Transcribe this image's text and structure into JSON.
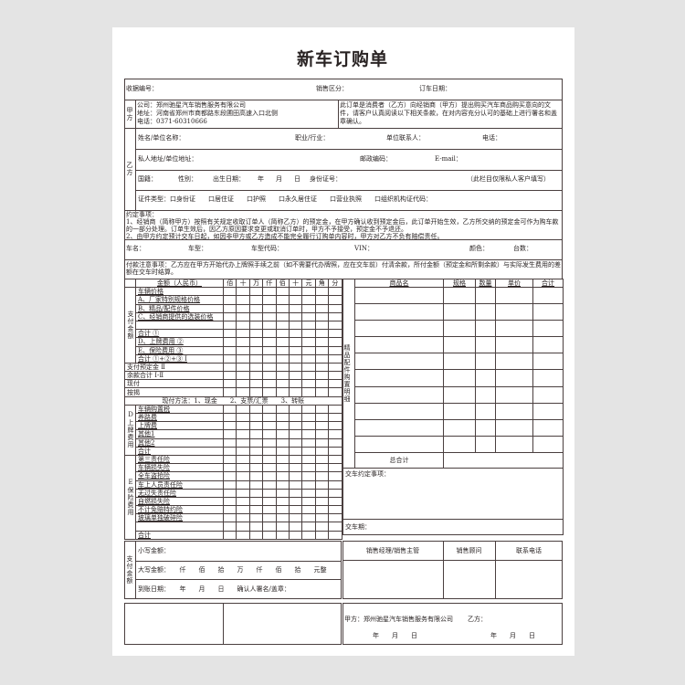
{
  "title": "新车订购单",
  "row1": {
    "receipt_no": "收据编号：",
    "sales_area": "销售区分：",
    "order_date": "订车日期："
  },
  "party_a": {
    "label": "甲方",
    "company": "公司：郑州驰星汽车销售服务有限公司",
    "address": "地址：河南省郑州市商都路东段圃田高速入口北侧",
    "phone": "电话：0371-60310666",
    "notice": "此订单是消费者（乙方）向经销商（甲方）提出购买汽车商品购买意向的文件，请客户认真阅读以下相关条款，在对内容充分认可的基础上进行署名和盖章确认。"
  },
  "party_b": {
    "label": "乙方",
    "name": "姓名/单位名称：",
    "occupation": "职业/行业：",
    "contact": "单位联系人：",
    "tel": "电话：",
    "address": "私人地址/单位地址：",
    "postcode": "邮政编码：",
    "email": "E-mail：",
    "nationality": "国籍：",
    "gender": "性别：",
    "birth": "出生日期：",
    "year": "年",
    "month": "月",
    "day": "日",
    "id_no": "身份证号：",
    "private_note": "（此栏目仅限私人客户填写）",
    "id_types": "证件类型：口身份证　　口居住证　　口护照　　口永久居住证　　口营业执照　　口组织机构证代码："
  },
  "terms": {
    "heading": "约定事项：",
    "item1": "1、经销商（简称甲方）按照有关规定收取订单人（简称乙方）的预定金，在甲方确认收到预定金后，此订单开始生效，乙方所交纳的预定金可作为购车款的一部分处理。订单生效后，因乙方原因要求变更或取消订单时，甲方不予接受，预定金不予退还。",
    "item2": "2、由甲方约定预计交车日起，如因非甲方或乙方造成不能完全履行订购单内容时，甲方对乙方不负有赔偿责任。"
  },
  "vehicle": {
    "name": "车名：",
    "model": "车型：",
    "model_code": "车型代码：",
    "vin": "VIN：",
    "color": "颜色：",
    "qty": "台数："
  },
  "payment_notice": "付款注意事项：乙方应在甲方开始代办上牌照手续之前（如不需要代办牌照，应在交车前）付清余款，所付金额（预定金和所剩余款）与实际发生费用的差额在交车时结算。",
  "amount_table": {
    "header": "金额（人民币）",
    "digits": [
      "佰",
      "十",
      "万",
      "仟",
      "佰",
      "十",
      "元",
      "角",
      "分"
    ],
    "pay_label": "支付金额",
    "pay_rows": [
      "车辆价格",
      "A、厂家特别规格价格",
      "B、精品/配件价格",
      "C、经销商提供的选装价格",
      "",
      "合计 ①",
      "D、上牌费用 ②",
      "E、保险费用 ③",
      "合计 ①+②+③ Ⅰ"
    ],
    "summary_rows": [
      "支付预定金 Ⅱ",
      "余款合计 Ⅰ-Ⅱ",
      "现付",
      "按揭"
    ],
    "pay_method": "现付方法：1、现金　　2、支票/汇票　　3、转账",
    "d_label": "D上牌费用",
    "d_rows": [
      "车辆购置税",
      "养路费",
      "上牌费",
      "其他1",
      "其他2",
      "合计"
    ],
    "e_label": "E保险费用",
    "e_rows": [
      "第三责任险",
      "车辆损失险",
      "全车盗抢险",
      "车上人员责任险",
      "无过失责任险",
      "自燃损失险",
      "不计免赔特约险",
      "玻璃单独破碎险",
      "",
      "合计"
    ]
  },
  "accessories": {
    "label": "精品配件购置明细",
    "headers": [
      "商品名",
      "规格",
      "数量",
      "单价",
      "合计"
    ],
    "row_count": 10,
    "total": "总合计",
    "delivery_terms": "交车约定事项：",
    "delivery_date": "交车期："
  },
  "payment_box": {
    "label": "支付金额",
    "lower": "小写金额：",
    "upper": "大写金额：　　仟　　佰　　拾　　万　　仟　　佰　　拾　　元整",
    "arrival": "到账日期：　　年　　月　　日　　确认人署名/盖章："
  },
  "staff": {
    "manager": "销售经理/销售主管",
    "advisor": "销售顾问",
    "phone": "联系电话"
  },
  "signature": {
    "party_a": "甲方：郑州驰星汽车销售服务有限公司",
    "party_b": "乙方：",
    "date_a": "年　　月　　日",
    "date_b": "年　　月　　日"
  }
}
